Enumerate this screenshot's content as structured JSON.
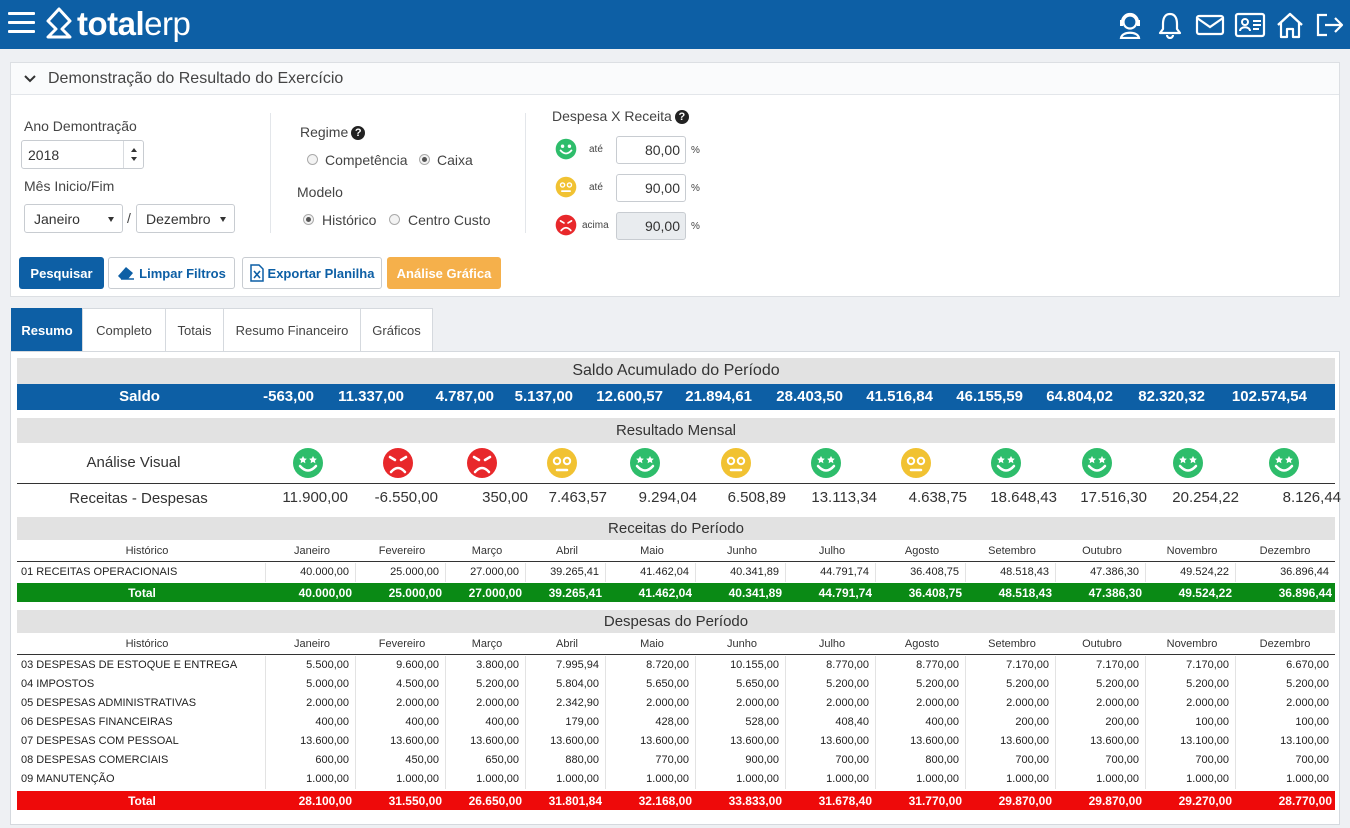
{
  "app": {
    "logo_bold": "total",
    "logo_light": "erp"
  },
  "top_icons": [
    "support-icon",
    "bell-icon",
    "mail-icon",
    "id-card-icon",
    "home-icon",
    "logout-icon"
  ],
  "panel": {
    "title": "Demonstração do Resultado do Exercício",
    "ano_label": "Ano Demontração",
    "ano_value": "2018",
    "mes_label": "Mês Inicio/Fim",
    "mes_inicio": "Janeiro",
    "mes_sep": "/",
    "mes_fim": "Dezembro",
    "regime_label": "Regime",
    "regime_options": [
      "Competência",
      "Caixa"
    ],
    "regime_selected": "Caixa",
    "modelo_label": "Modelo",
    "modelo_options": [
      "Histórico",
      "Centro Custo"
    ],
    "modelo_selected": "Histórico",
    "dxr_label": "Despesa X Receita",
    "dxr_levels": [
      {
        "face": "happy",
        "label": "até",
        "value": "80,00",
        "unit": "%"
      },
      {
        "face": "neutral",
        "label": "até",
        "value": "90,00",
        "unit": "%"
      },
      {
        "face": "sad",
        "label": "acima",
        "value": "90,00",
        "unit": "%"
      }
    ],
    "buttons": {
      "pesquisar": "Pesquisar",
      "limpar": "Limpar Filtros",
      "exportar": "Exportar Planilha",
      "analise": "Análise Gráfica"
    }
  },
  "tabs": [
    "Resumo",
    "Completo",
    "Totais",
    "Resumo Financeiro",
    "Gráficos"
  ],
  "active_tab": "Resumo",
  "saldo": {
    "title": "Saldo Acumulado do Período",
    "label": "Saldo",
    "values": [
      "-563,00",
      "11.337,00",
      "4.787,00",
      "5.137,00",
      "12.600,57",
      "21.894,61",
      "28.403,50",
      "41.516,84",
      "46.155,59",
      "64.804,02",
      "82.320,32",
      "102.574,54"
    ]
  },
  "mensal": {
    "title": "Resultado Mensal",
    "visual_label": "Análise Visual",
    "faces": [
      "happy",
      "sad",
      "sad",
      "neutral",
      "happy",
      "neutral",
      "happy",
      "neutral",
      "happy",
      "happy",
      "happy",
      "happy"
    ],
    "rd_label": "Receitas - Despesas",
    "rd_values": [
      "11.900,00",
      "-6.550,00",
      "350,00",
      "7.463,57",
      "9.294,04",
      "6.508,89",
      "13.113,34",
      "4.638,75",
      "18.648,43",
      "17.516,30",
      "20.254,22",
      "8.126,44"
    ]
  },
  "months_header": {
    "historico": "Histórico",
    "months": [
      "Janeiro",
      "Fevereiro",
      "Março",
      "Abril",
      "Maio",
      "Junho",
      "Julho",
      "Agosto",
      "Setembro",
      "Outubro",
      "Novembro",
      "Dezembro"
    ]
  },
  "receitas": {
    "title": "Receitas do Período",
    "rows": [
      {
        "name": "01 RECEITAS OPERACIONAIS",
        "values": [
          "40.000,00",
          "25.000,00",
          "27.000,00",
          "39.265,41",
          "41.462,04",
          "40.341,89",
          "44.791,74",
          "36.408,75",
          "48.518,43",
          "47.386,30",
          "49.524,22",
          "36.896,44"
        ]
      }
    ],
    "total_label": "Total",
    "total": [
      "40.000,00",
      "25.000,00",
      "27.000,00",
      "39.265,41",
      "41.462,04",
      "40.341,89",
      "44.791,74",
      "36.408,75",
      "48.518,43",
      "47.386,30",
      "49.524,22",
      "36.896,44"
    ]
  },
  "despesas": {
    "title": "Despesas do Período",
    "rows": [
      {
        "name": "03 DESPESAS DE ESTOQUE E ENTREGA",
        "values": [
          "5.500,00",
          "9.600,00",
          "3.800,00",
          "7.995,94",
          "8.720,00",
          "10.155,00",
          "8.770,00",
          "8.770,00",
          "7.170,00",
          "7.170,00",
          "7.170,00",
          "6.670,00"
        ]
      },
      {
        "name": "04 IMPOSTOS",
        "values": [
          "5.000,00",
          "4.500,00",
          "5.200,00",
          "5.804,00",
          "5.650,00",
          "5.650,00",
          "5.200,00",
          "5.200,00",
          "5.200,00",
          "5.200,00",
          "5.200,00",
          "5.200,00"
        ]
      },
      {
        "name": "05 DESPESAS ADMINISTRATIVAS",
        "values": [
          "2.000,00",
          "2.000,00",
          "2.000,00",
          "2.342,90",
          "2.000,00",
          "2.000,00",
          "2.000,00",
          "2.000,00",
          "2.000,00",
          "2.000,00",
          "2.000,00",
          "2.000,00"
        ]
      },
      {
        "name": "06 DESPESAS FINANCEIRAS",
        "values": [
          "400,00",
          "400,00",
          "400,00",
          "179,00",
          "428,00",
          "528,00",
          "408,40",
          "400,00",
          "200,00",
          "200,00",
          "100,00",
          "100,00"
        ]
      },
      {
        "name": "07 DESPESAS COM PESSOAL",
        "values": [
          "13.600,00",
          "13.600,00",
          "13.600,00",
          "13.600,00",
          "13.600,00",
          "13.600,00",
          "13.600,00",
          "13.600,00",
          "13.600,00",
          "13.600,00",
          "13.100,00",
          "13.100,00"
        ]
      },
      {
        "name": "08 DESPESAS COMERCIAIS",
        "values": [
          "600,00",
          "450,00",
          "650,00",
          "880,00",
          "770,00",
          "900,00",
          "700,00",
          "800,00",
          "700,00",
          "700,00",
          "700,00",
          "700,00"
        ]
      },
      {
        "name": "09 MANUTENÇÃO",
        "values": [
          "1.000,00",
          "1.000,00",
          "1.000,00",
          "1.000,00",
          "1.000,00",
          "1.000,00",
          "1.000,00",
          "1.000,00",
          "1.000,00",
          "1.000,00",
          "1.000,00",
          "1.000,00"
        ]
      }
    ],
    "total_label": "Total",
    "total": [
      "28.100,00",
      "31.550,00",
      "26.650,00",
      "31.801,84",
      "32.168,00",
      "33.833,00",
      "31.678,40",
      "31.770,00",
      "29.870,00",
      "29.870,00",
      "29.270,00",
      "28.770,00"
    ]
  },
  "colors": {
    "primary": "#0d5fa5",
    "happy": "#2ebd6b",
    "neutral": "#f1c232",
    "sad": "#e8282b",
    "receita_total": "#0a8a15",
    "despesa_total": "#ee0a0a",
    "warn": "#f5b04b"
  }
}
